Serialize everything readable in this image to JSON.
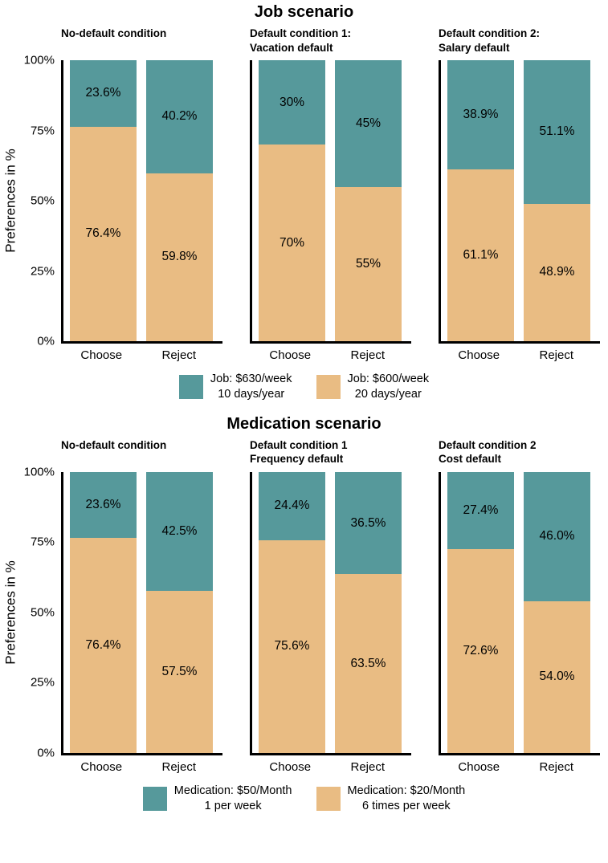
{
  "chart_data": [
    {
      "type": "bar",
      "stacked": true,
      "title": "Job scenario",
      "ylabel": "Preferences in %",
      "ylim": [
        0,
        100
      ],
      "grid": false,
      "legend_position": "bottom",
      "yticks": [
        {
          "label": "0%",
          "value": 0
        },
        {
          "label": "25%",
          "value": 25
        },
        {
          "label": "50%",
          "value": 50
        },
        {
          "label": "75%",
          "value": 75
        },
        {
          "label": "100%",
          "value": 100
        }
      ],
      "categories": [
        "Choose",
        "Reject"
      ],
      "series_names": [
        "Job: $630/week 10 days/year",
        "Job: $600/week 20 days/year"
      ],
      "colors": {
        "top": "#56999B",
        "bottom": "#E9BC83"
      },
      "facets": [
        {
          "header_lines": [
            "No-default condition"
          ],
          "bars": [
            {
              "category": "Choose",
              "top": 23.6,
              "top_label": "23.6%",
              "bottom": 76.4,
              "bottom_label": "76.4%"
            },
            {
              "category": "Reject",
              "top": 40.2,
              "top_label": "40.2%",
              "bottom": 59.8,
              "bottom_label": "59.8%"
            }
          ]
        },
        {
          "header_lines": [
            "Default condition 1:",
            "Vacation default"
          ],
          "bars": [
            {
              "category": "Choose",
              "top": 30,
              "top_label": "30%",
              "bottom": 70,
              "bottom_label": "70%"
            },
            {
              "category": "Reject",
              "top": 45,
              "top_label": "45%",
              "bottom": 55,
              "bottom_label": "55%"
            }
          ]
        },
        {
          "header_lines": [
            "Default condition 2:",
            "Salary default"
          ],
          "bars": [
            {
              "category": "Choose",
              "top": 38.9,
              "top_label": "38.9%",
              "bottom": 61.1,
              "bottom_label": "61.1%"
            },
            {
              "category": "Reject",
              "top": 51.1,
              "top_label": "51.1%",
              "bottom": 48.9,
              "bottom_label": "48.9%"
            }
          ]
        }
      ],
      "legend": [
        {
          "color": "#56999B",
          "lines": [
            "Job: $630/week",
            "10 days/year"
          ]
        },
        {
          "color": "#E9BC83",
          "lines": [
            "Job: $600/week",
            "20 days/year"
          ]
        }
      ]
    },
    {
      "type": "bar",
      "stacked": true,
      "title": "Medication scenario",
      "ylabel": "Preferences in %",
      "ylim": [
        0,
        100
      ],
      "grid": false,
      "legend_position": "bottom",
      "yticks": [
        {
          "label": "0%",
          "value": 0
        },
        {
          "label": "25%",
          "value": 25
        },
        {
          "label": "50%",
          "value": 50
        },
        {
          "label": "75%",
          "value": 75
        },
        {
          "label": "100%",
          "value": 100
        }
      ],
      "categories": [
        "Choose",
        "Reject"
      ],
      "series_names": [
        "Medication: $50/Month 1 per week",
        "Medication: $20/Month 6 times per week"
      ],
      "colors": {
        "top": "#56999B",
        "bottom": "#E9BC83"
      },
      "facets": [
        {
          "header_lines": [
            "No-default condition"
          ],
          "bars": [
            {
              "category": "Choose",
              "top": 23.6,
              "top_label": "23.6%",
              "bottom": 76.4,
              "bottom_label": "76.4%"
            },
            {
              "category": "Reject",
              "top": 42.5,
              "top_label": "42.5%",
              "bottom": 57.5,
              "bottom_label": "57.5%"
            }
          ]
        },
        {
          "header_lines": [
            "Default condition 1",
            "Frequency default"
          ],
          "bars": [
            {
              "category": "Choose",
              "top": 24.4,
              "top_label": "24.4%",
              "bottom": 75.6,
              "bottom_label": "75.6%"
            },
            {
              "category": "Reject",
              "top": 36.5,
              "top_label": "36.5%",
              "bottom": 63.5,
              "bottom_label": "63.5%"
            }
          ]
        },
        {
          "header_lines": [
            "Default condition 2",
            "Cost default"
          ],
          "bars": [
            {
              "category": "Choose",
              "top": 27.4,
              "top_label": "27.4%",
              "bottom": 72.6,
              "bottom_label": "72.6%"
            },
            {
              "category": "Reject",
              "top": 46.0,
              "top_label": "46.0%",
              "bottom": 54.0,
              "bottom_label": "54.0%"
            }
          ]
        }
      ],
      "legend": [
        {
          "color": "#56999B",
          "lines": [
            "Medication: $50/Month",
            "1 per week"
          ]
        },
        {
          "color": "#E9BC83",
          "lines": [
            "Medication: $20/Month",
            "6 times per week"
          ]
        }
      ]
    }
  ]
}
